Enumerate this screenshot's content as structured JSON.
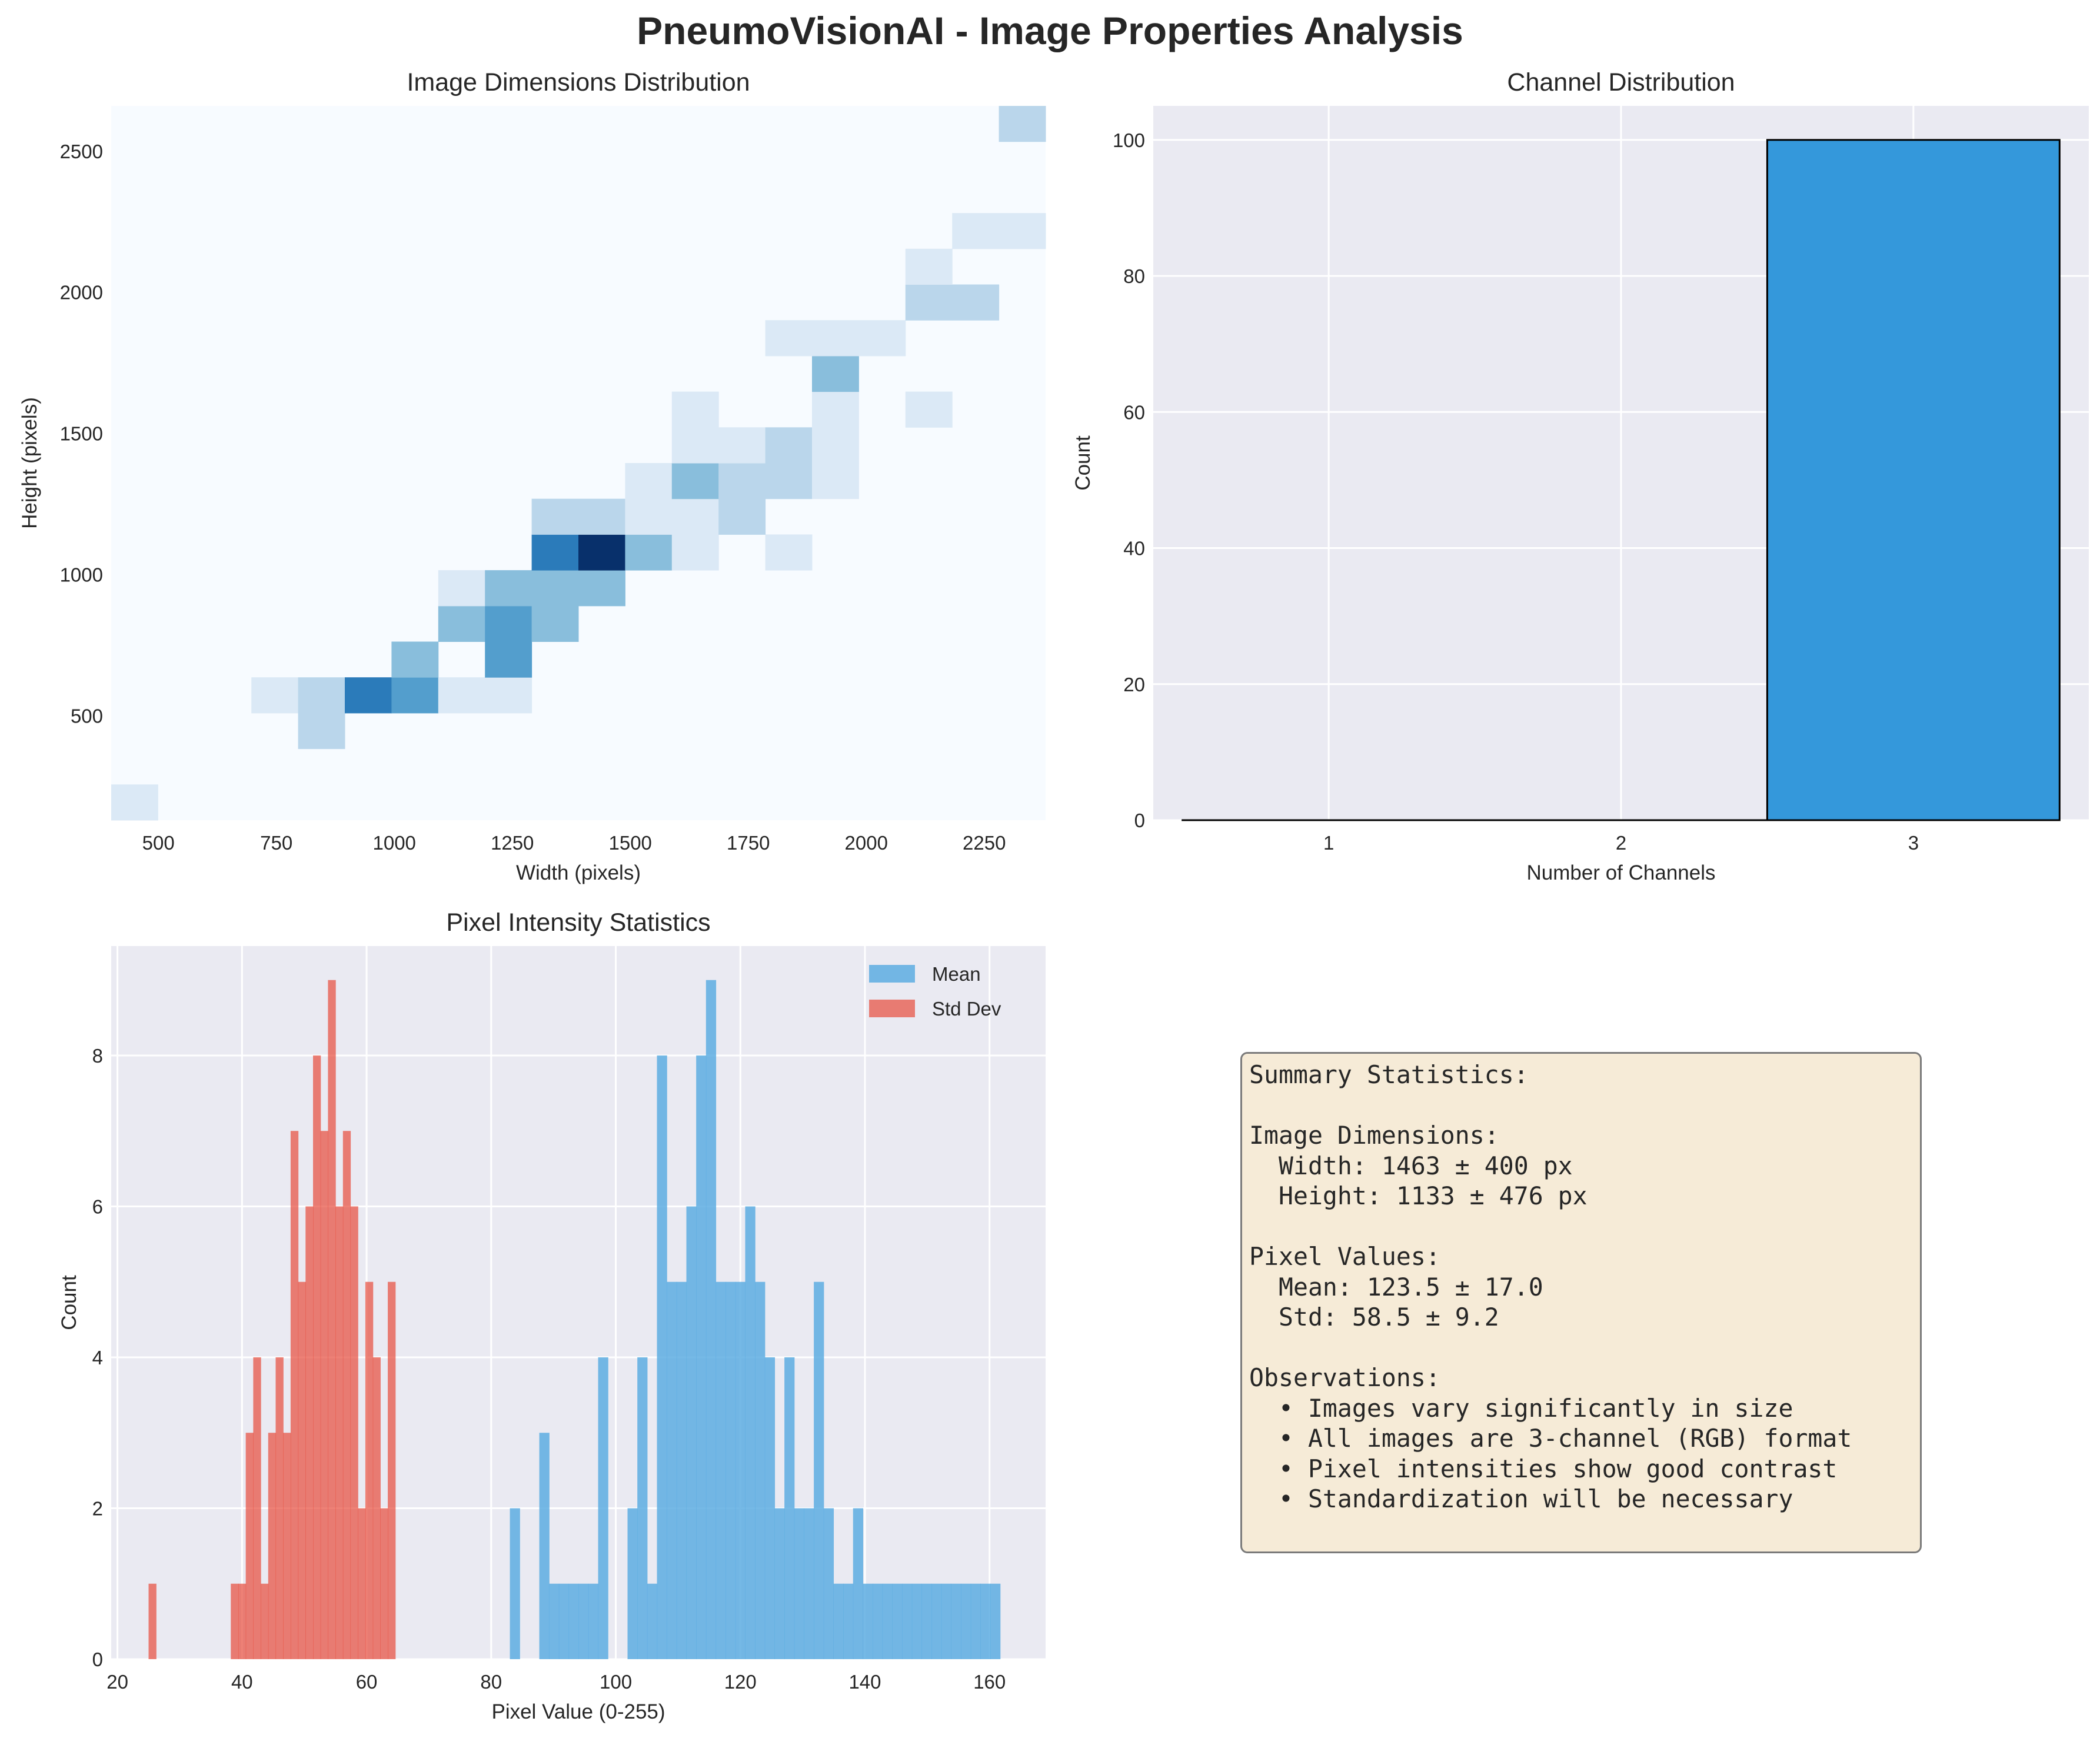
{
  "suptitle": "PneumoVisionAI - Image Properties Analysis",
  "colors": {
    "heat_ramp": [
      "#f7fbff",
      "#dbe9f6",
      "#bad6eb",
      "#89bedc",
      "#539ecd",
      "#2b7bba",
      "#0b559f",
      "#08306b"
    ],
    "channel_bar": "#3498db",
    "mean_hist": "#5dade2",
    "std_hist": "#e74c3c",
    "axes_bg": "#eaeaf2"
  },
  "chart_data": [
    {
      "type": "heatmap",
      "title": "Image Dimensions Distribution",
      "xlabel": "Width (pixels)",
      "ylabel": "Height (pixels)",
      "xlim": [
        400,
        2380
      ],
      "ylim": [
        130,
        2660
      ],
      "x_ticks": [
        500,
        750,
        1000,
        1250,
        1500,
        1750,
        2000,
        2250
      ],
      "y_ticks": [
        500,
        1000,
        1500,
        2000,
        2500
      ],
      "x_edges": [
        400,
        499,
        598,
        697,
        796,
        895,
        994,
        1093,
        1192,
        1291,
        1390,
        1489,
        1588,
        1687,
        1786,
        1885,
        1984,
        2083,
        2182,
        2281,
        2380
      ],
      "y_edges": [
        130,
        256.5,
        383,
        509.5,
        636,
        762.5,
        889,
        1015.5,
        1142,
        1268.5,
        1395,
        1521.5,
        1648,
        1774.5,
        1901,
        2027.5,
        2154,
        2280.5,
        2407,
        2533.5,
        2660
      ],
      "cells": [
        {
          "col": 0,
          "row": 0,
          "count": 1
        },
        {
          "col": 4,
          "row": 2,
          "count": 2
        },
        {
          "col": 3,
          "row": 3,
          "count": 1
        },
        {
          "col": 4,
          "row": 3,
          "count": 2
        },
        {
          "col": 5,
          "row": 3,
          "count": 5
        },
        {
          "col": 6,
          "row": 3,
          "count": 4
        },
        {
          "col": 7,
          "row": 3,
          "count": 1
        },
        {
          "col": 8,
          "row": 3,
          "count": 1
        },
        {
          "col": 6,
          "row": 4,
          "count": 3
        },
        {
          "col": 8,
          "row": 4,
          "count": 4
        },
        {
          "col": 7,
          "row": 5,
          "count": 3
        },
        {
          "col": 8,
          "row": 5,
          "count": 4
        },
        {
          "col": 9,
          "row": 5,
          "count": 3
        },
        {
          "col": 7,
          "row": 6,
          "count": 1
        },
        {
          "col": 8,
          "row": 6,
          "count": 3
        },
        {
          "col": 9,
          "row": 6,
          "count": 3
        },
        {
          "col": 10,
          "row": 6,
          "count": 3
        },
        {
          "col": 9,
          "row": 7,
          "count": 5
        },
        {
          "col": 10,
          "row": 7,
          "count": 7
        },
        {
          "col": 11,
          "row": 7,
          "count": 3
        },
        {
          "col": 12,
          "row": 7,
          "count": 1
        },
        {
          "col": 14,
          "row": 7,
          "count": 1
        },
        {
          "col": 9,
          "row": 8,
          "count": 2
        },
        {
          "col": 10,
          "row": 8,
          "count": 2
        },
        {
          "col": 11,
          "row": 8,
          "count": 1
        },
        {
          "col": 12,
          "row": 8,
          "count": 1
        },
        {
          "col": 13,
          "row": 8,
          "count": 2
        },
        {
          "col": 11,
          "row": 9,
          "count": 1
        },
        {
          "col": 12,
          "row": 9,
          "count": 3
        },
        {
          "col": 13,
          "row": 9,
          "count": 2
        },
        {
          "col": 14,
          "row": 9,
          "count": 2
        },
        {
          "col": 15,
          "row": 9,
          "count": 1
        },
        {
          "col": 12,
          "row": 10,
          "count": 1
        },
        {
          "col": 13,
          "row": 10,
          "count": 1
        },
        {
          "col": 14,
          "row": 10,
          "count": 2
        },
        {
          "col": 15,
          "row": 10,
          "count": 1
        },
        {
          "col": 12,
          "row": 11,
          "count": 1
        },
        {
          "col": 15,
          "row": 11,
          "count": 1
        },
        {
          "col": 17,
          "row": 11,
          "count": 1
        },
        {
          "col": 15,
          "row": 12,
          "count": 3
        },
        {
          "col": 14,
          "row": 13,
          "count": 1
        },
        {
          "col": 15,
          "row": 13,
          "count": 1
        },
        {
          "col": 16,
          "row": 13,
          "count": 1
        },
        {
          "col": 17,
          "row": 14,
          "count": 2
        },
        {
          "col": 18,
          "row": 14,
          "count": 2
        },
        {
          "col": 17,
          "row": 15,
          "count": 1
        },
        {
          "col": 18,
          "row": 16,
          "count": 1
        },
        {
          "col": 19,
          "row": 16,
          "count": 1
        },
        {
          "col": 19,
          "row": 19,
          "count": 2
        }
      ],
      "vmax": 7
    },
    {
      "type": "bar",
      "title": "Channel Distribution",
      "xlabel": "Number of Channels",
      "ylabel": "Count",
      "categories": [
        "1",
        "2",
        "3"
      ],
      "values": [
        0,
        0,
        100
      ],
      "xlim": [
        0.4,
        3.6
      ],
      "ylim": [
        0,
        105
      ],
      "y_ticks": [
        0,
        20,
        40,
        60,
        80,
        100
      ],
      "grid": true
    },
    {
      "type": "bar",
      "subtype": "histogram",
      "title": "Pixel Intensity Statistics",
      "xlabel": "Pixel Value (0-255)",
      "ylabel": "Count",
      "xlim": [
        19,
        169
      ],
      "ylim": [
        0,
        9.45
      ],
      "x_ticks": [
        20,
        40,
        60,
        80,
        100,
        120,
        140,
        160
      ],
      "y_ticks": [
        0,
        2,
        4,
        6,
        8
      ],
      "grid": true,
      "legend": "top-right",
      "series": [
        {
          "name": "Mean",
          "bin_start": 83.0,
          "bin_width": 1.574,
          "counts": [
            2,
            0,
            0,
            3,
            1,
            1,
            1,
            1,
            1,
            4,
            0,
            0,
            2,
            4,
            1,
            8,
            5,
            5,
            6,
            8,
            9,
            5,
            5,
            5,
            6,
            5,
            4,
            2,
            4,
            2,
            2,
            5,
            2,
            1,
            1,
            2,
            1,
            1,
            1,
            1,
            1,
            1,
            1,
            1,
            1,
            1,
            1,
            1,
            1,
            1
          ]
        },
        {
          "name": "Std Dev",
          "bin_start": 25.0,
          "bin_width": 1.2,
          "counts": [
            1,
            0,
            0,
            0,
            0,
            0,
            0,
            0,
            0,
            0,
            0,
            1,
            1,
            3,
            4,
            1,
            3,
            4,
            3,
            7,
            5,
            6,
            8,
            7,
            9,
            6,
            7,
            6,
            2,
            5,
            4,
            2,
            5
          ]
        }
      ]
    }
  ],
  "summary": {
    "lines": [
      "Summary Statistics:",
      "",
      "Image Dimensions:",
      "  Width: 1463 ± 400 px",
      "  Height: 1133 ± 476 px",
      "",
      "Pixel Values:",
      "  Mean: 123.5 ± 17.0",
      "  Std: 58.5 ± 9.2",
      "",
      "Observations:",
      "  • Images vary significantly in size",
      "  • All images are 3-channel (RGB) format",
      "  • Pixel intensities show good contrast",
      "  • Standardization will be necessary"
    ]
  }
}
